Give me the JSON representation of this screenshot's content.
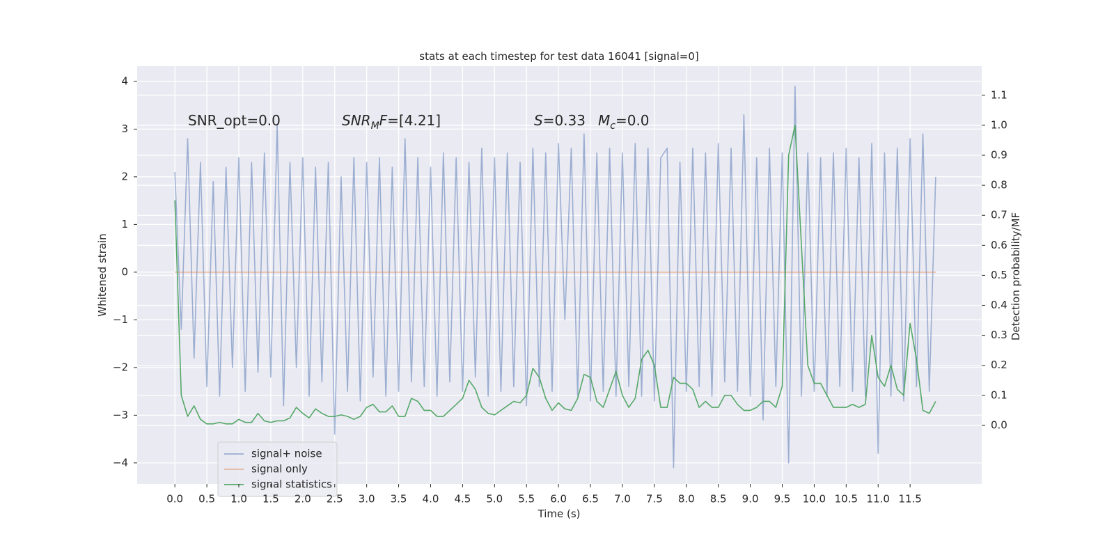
{
  "chart_data": {
    "type": "line",
    "title": "stats at each timestep for test data 16041 [signal=0]",
    "xlabel": "Time (s)",
    "ylabel": "Whitened strain",
    "y2label": "Detection probability/MF",
    "annotations": [
      [
        "SNR_opt=0.0"
      ],
      [
        "SNR",
        "M",
        "F",
        "=[4.21]"
      ],
      [
        "S",
        "=0.33",
        "M",
        "c",
        "=0.0"
      ]
    ],
    "grid": true,
    "legend": "lower left",
    "xlim": [
      -0.59,
      12.62
    ],
    "ylim": [
      -4.44,
      4.32
    ],
    "y2lim": [
      -0.195,
      1.197
    ],
    "xticks": [
      {
        "value": 0,
        "label": "0.0"
      },
      0.5,
      {
        "value": 1,
        "label": "1.0"
      },
      1.5,
      {
        "value": 2,
        "label": "2.0"
      },
      2.5,
      {
        "value": 3,
        "label": "3.0"
      },
      3.5,
      {
        "value": 4,
        "label": "4.0"
      },
      4.5,
      {
        "value": 5,
        "label": "5.0"
      },
      5.5,
      {
        "value": 6,
        "label": "6.0"
      },
      6.5,
      {
        "value": 7,
        "label": "7.0"
      },
      7.5,
      {
        "value": 8,
        "label": "8.0"
      },
      8.5,
      {
        "value": 9,
        "label": "9.0"
      },
      9.5,
      {
        "value": 10,
        "label": "10.0"
      },
      10.5,
      {
        "value": 11,
        "label": "11.0"
      },
      11.5
    ],
    "yticks": [
      {
        "value": -4,
        "label": "−4"
      },
      {
        "value": -3,
        "label": "−3"
      },
      {
        "value": -2,
        "label": "−2"
      },
      {
        "value": -1,
        "label": "−1"
      },
      0,
      1,
      2,
      3,
      4
    ],
    "y2ticks": [
      {
        "value": 0,
        "label": "0.0"
      },
      0.1,
      0.2,
      0.3,
      0.4,
      0.5,
      0.6,
      0.7,
      0.8,
      0.9,
      {
        "value": 1,
        "label": "1.0"
      },
      1.1
    ],
    "x": [
      0,
      0.1,
      0.2,
      0.3,
      0.4,
      0.5,
      0.6,
      0.7,
      0.8,
      0.9,
      1,
      1.1,
      1.2,
      1.3,
      1.4,
      1.5,
      1.6,
      1.7,
      1.8,
      1.9,
      2,
      2.1,
      2.2,
      2.3,
      2.4,
      2.5,
      2.6,
      2.7,
      2.8,
      2.9,
      3,
      3.1,
      3.2,
      3.3,
      3.4,
      3.5,
      3.6,
      3.7,
      3.8,
      3.9,
      4,
      4.1,
      4.2,
      4.3,
      4.4,
      4.5,
      4.6,
      4.7,
      4.8,
      4.9,
      5,
      5.1,
      5.2,
      5.3,
      5.4,
      5.5,
      5.6,
      5.7,
      5.8,
      5.9,
      6,
      6.1,
      6.2,
      6.3,
      6.4,
      6.5,
      6.6,
      6.7,
      6.8,
      6.9,
      7,
      7.1,
      7.2,
      7.3,
      7.4,
      7.5,
      7.6,
      7.7,
      7.8,
      7.9,
      8,
      8.1,
      8.2,
      8.3,
      8.4,
      8.5,
      8.6,
      8.7,
      8.8,
      8.9,
      9,
      9.1,
      9.2,
      9.3,
      9.4,
      9.5,
      9.6,
      9.7,
      9.8,
      9.9,
      10,
      10.1,
      10.2,
      10.3,
      10.4,
      10.5,
      10.6,
      10.7,
      10.8,
      10.9,
      11,
      11.1,
      11.2,
      11.3,
      11.4,
      11.5,
      11.6,
      11.7,
      11.8,
      11.9
    ],
    "series": [
      {
        "name": "signal+ noise",
        "color": "#4c72b0",
        "alpha": 0.5,
        "values": [
          2.1,
          -1.2,
          2.8,
          -1.8,
          2.3,
          -2.4,
          1.9,
          -2.6,
          2.2,
          -2.0,
          2.4,
          -2.5,
          2.3,
          -2.1,
          2.5,
          -2.2,
          3.1,
          -2.8,
          2.3,
          -2.0,
          2.4,
          -2.6,
          2.2,
          -2.3,
          2.3,
          -3.4,
          2.0,
          -2.5,
          2.4,
          -2.7,
          2.3,
          -2.2,
          2.4,
          -2.6,
          2.2,
          -2.5,
          2.8,
          -2.3,
          2.4,
          -2.4,
          2.2,
          -2.6,
          2.5,
          -2.3,
          2.4,
          -2.5,
          2.3,
          -2.2,
          2.6,
          -2.6,
          2.4,
          -2.5,
          2.5,
          -2.4,
          2.3,
          -2.8,
          2.6,
          -2.4,
          2.5,
          -2.5,
          2.7,
          -1.0,
          2.6,
          -2.6,
          2.9,
          -2.7,
          2.5,
          -2.5,
          2.6,
          -2.6,
          2.5,
          -2.4,
          2.7,
          -2.6,
          2.6,
          -2.7,
          2.4,
          2.6,
          -4.1,
          2.3,
          -2.5,
          2.6,
          -2.4,
          2.5,
          -2.6,
          2.7,
          -2.3,
          2.6,
          -2.5,
          3.3,
          -2.6,
          2.4,
          -3.1,
          2.6,
          -2.4,
          2.5,
          -4.0,
          3.9,
          -2.6,
          2.5,
          -2.5,
          2.4,
          -2.6,
          2.5,
          -2.4,
          2.6,
          -2.5,
          2.4,
          -2.6,
          2.7,
          -3.8,
          2.5,
          -2.6,
          2.6,
          -2.7,
          2.8,
          -2.4,
          2.9,
          -2.5,
          2.0
        ]
      },
      {
        "name": "signal only",
        "color": "#dd8452",
        "alpha": 0.5,
        "values": [
          0,
          0,
          0,
          0,
          0,
          0,
          0,
          0,
          0,
          0,
          0,
          0,
          0,
          0,
          0,
          0,
          0,
          0,
          0,
          0,
          0,
          0,
          0,
          0,
          0,
          0,
          0,
          0,
          0,
          0,
          0,
          0,
          0,
          0,
          0,
          0,
          0,
          0,
          0,
          0,
          0,
          0,
          0,
          0,
          0,
          0,
          0,
          0,
          0,
          0,
          0,
          0,
          0,
          0,
          0,
          0,
          0,
          0,
          0,
          0,
          0,
          0,
          0,
          0,
          0,
          0,
          0,
          0,
          0,
          0,
          0,
          0,
          0,
          0,
          0,
          0,
          0,
          0,
          0,
          0,
          0,
          0,
          0,
          0,
          0,
          0,
          0,
          0,
          0,
          0,
          0,
          0,
          0,
          0,
          0,
          0,
          0,
          0,
          0,
          0,
          0,
          0,
          0,
          0,
          0,
          0,
          0,
          0,
          0,
          0,
          0,
          0,
          0,
          0,
          0,
          0,
          0,
          0,
          0,
          0
        ]
      },
      {
        "name": "signal statistics",
        "color": "#55a868",
        "alpha": 1,
        "axis": "y2",
        "values": [
          0.75,
          0.1,
          0.03,
          0.065,
          0.02,
          0.005,
          0.005,
          0.01,
          0.005,
          0.005,
          0.02,
          0.01,
          0.01,
          0.04,
          0.015,
          0.01,
          0.015,
          0.015,
          0.025,
          0.06,
          0.04,
          0.025,
          0.055,
          0.04,
          0.03,
          0.03,
          0.035,
          0.03,
          0.02,
          0.03,
          0.06,
          0.07,
          0.045,
          0.045,
          0.065,
          0.03,
          0.03,
          0.09,
          0.08,
          0.05,
          0.05,
          0.03,
          0.03,
          0.05,
          0.07,
          0.09,
          0.15,
          0.12,
          0.06,
          0.04,
          0.035,
          0.05,
          0.065,
          0.08,
          0.075,
          0.1,
          0.19,
          0.16,
          0.09,
          0.05,
          0.075,
          0.055,
          0.05,
          0.09,
          0.17,
          0.16,
          0.08,
          0.06,
          0.12,
          0.18,
          0.1,
          0.06,
          0.09,
          0.22,
          0.25,
          0.2,
          0.06,
          0.06,
          0.16,
          0.14,
          0.14,
          0.12,
          0.06,
          0.08,
          0.06,
          0.06,
          0.1,
          0.1,
          0.07,
          0.05,
          0.05,
          0.06,
          0.08,
          0.08,
          0.06,
          0.13,
          0.9,
          1.0,
          0.6,
          0.2,
          0.14,
          0.14,
          0.1,
          0.06,
          0.06,
          0.06,
          0.07,
          0.06,
          0.07,
          0.3,
          0.16,
          0.13,
          0.2,
          0.12,
          0.1,
          0.34,
          0.22,
          0.05,
          0.04,
          0.08
        ]
      }
    ]
  }
}
